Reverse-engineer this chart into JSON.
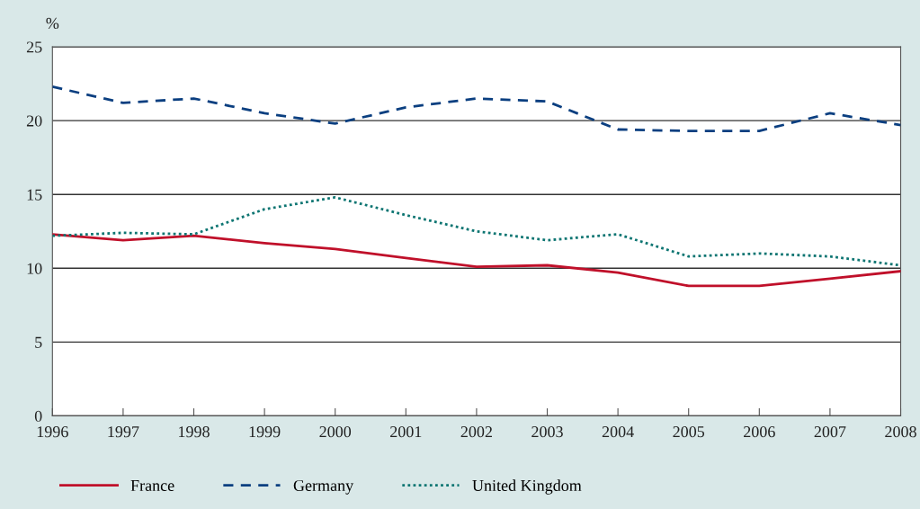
{
  "chart_data": {
    "type": "line",
    "ylabel": "%",
    "x": [
      1996,
      1997,
      1998,
      1999,
      2000,
      2001,
      2002,
      2003,
      2004,
      2005,
      2006,
      2007,
      2008
    ],
    "series": [
      {
        "name": "France",
        "color": "#c0102a",
        "line_style": "solid",
        "values": [
          12.3,
          11.9,
          12.2,
          11.7,
          11.3,
          10.7,
          10.1,
          10.2,
          9.7,
          8.8,
          8.8,
          9.3,
          9.8
        ]
      },
      {
        "name": "Germany",
        "color": "#0b3f80",
        "line_style": "dashed",
        "values": [
          22.3,
          21.2,
          21.5,
          20.5,
          19.8,
          20.9,
          21.5,
          21.3,
          19.4,
          19.3,
          19.3,
          20.5,
          19.7
        ]
      },
      {
        "name": "United Kingdom",
        "color": "#0d7572",
        "line_style": "dotted",
        "values": [
          12.2,
          12.4,
          12.3,
          14.0,
          14.8,
          13.6,
          12.5,
          11.9,
          12.3,
          10.8,
          11.0,
          10.8,
          10.2
        ]
      }
    ],
    "xlim": [
      1996,
      2008
    ],
    "xticks": [
      1996,
      1997,
      1998,
      1999,
      2000,
      2001,
      2002,
      2003,
      2004,
      2005,
      2006,
      2007,
      2008
    ],
    "ylim": [
      0,
      25
    ],
    "yticks": [
      0,
      5,
      10,
      15,
      20,
      25
    ],
    "grid": "y",
    "legend": "bottom",
    "marker": "none"
  }
}
